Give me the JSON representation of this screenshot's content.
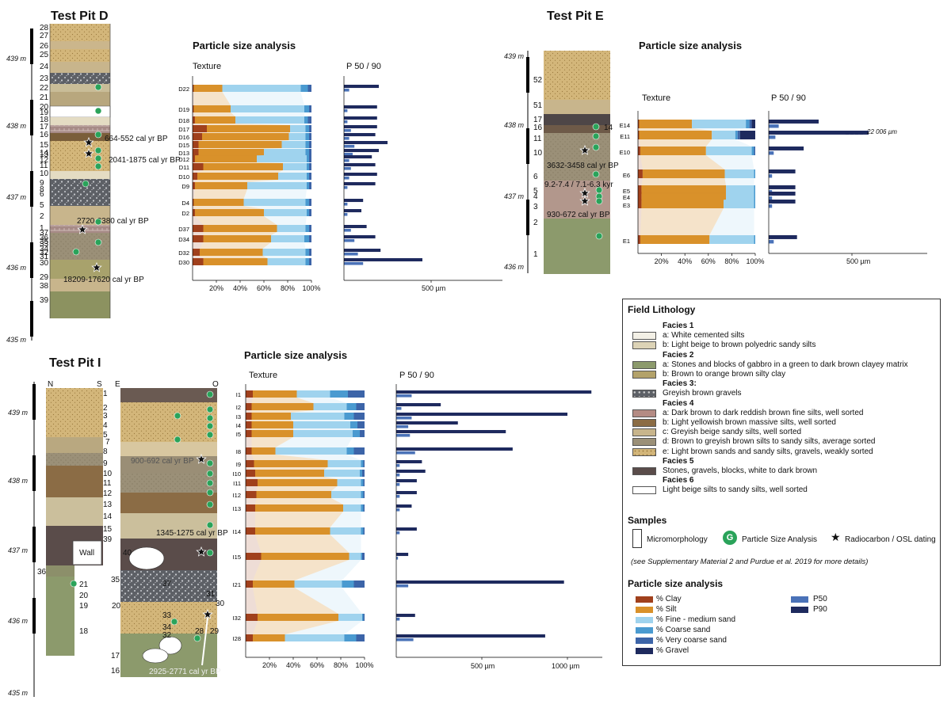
{
  "pits": {
    "D": {
      "title": "Test Pit D",
      "elev": [
        "439 m",
        "438 m",
        "437 m",
        "436 m",
        "435 m"
      ],
      "layers": [
        "28",
        "27",
        "26",
        "25",
        "24",
        "23",
        "22",
        "21",
        "20",
        "19",
        "18",
        "17",
        "16",
        "15",
        "14",
        "13",
        "12",
        "11",
        "10",
        "9",
        "8",
        "6",
        "5",
        "2",
        "1",
        "37",
        "36",
        "35",
        "33",
        "34",
        "32",
        "31",
        "30",
        "29",
        "38",
        "39"
      ],
      "dates": [
        "664-552 cal yr BP",
        "2041-1875 cal yr BP",
        "2720-2380 cal yr BP",
        "18209-17620 cal yr BP"
      ]
    },
    "E": {
      "title": "Test Pit E",
      "elev": [
        "439 m",
        "438 m",
        "437 m",
        "436 m"
      ],
      "layers": [
        "52",
        "51",
        "17",
        "16",
        "14",
        "11",
        "10",
        "6",
        "5",
        "4",
        "3",
        "2",
        "1"
      ],
      "dates": [
        "3632-3458 cal yr BP",
        "9.2-7.4 / 7.1-6.3 kyr",
        "930-672 cal yr BP"
      ]
    },
    "I": {
      "title": "Test Pit I",
      "elev": [
        "439 m",
        "438 m",
        "437 m",
        "436 m",
        "435 m"
      ],
      "headers": [
        "N",
        "S",
        "E",
        "O"
      ],
      "layers_right": [
        "1",
        "2",
        "3",
        "4",
        "5",
        "7",
        "8",
        "9",
        "10",
        "11",
        "12",
        "13",
        "14",
        "15",
        "39",
        "40",
        "35",
        "37",
        "36",
        "31",
        "30",
        "33",
        "34",
        "32",
        "28",
        "29",
        "20",
        "17",
        "16"
      ],
      "layers_left": [
        "21",
        "20",
        "19",
        "18"
      ],
      "wall": "Wall",
      "dates": [
        "900-692 cal yr BP",
        "1345-1275 cal yr BP",
        "2925-2771 cal yr BP"
      ]
    }
  },
  "psa": {
    "title": "Particle size analysis",
    "texture": "Texture",
    "p5090": "P 50 / 90",
    "pct_ticks": [
      "20%",
      "40%",
      "60%",
      "80%",
      "100%"
    ],
    "um_500": "500 µm",
    "um_1000": "1000 µm",
    "e11_note": "22 006 µm"
  },
  "chart_data": [
    {
      "type": "bar",
      "title": "Test Pit D - Texture",
      "xlabel": "%",
      "stacked": true,
      "categories": [
        "D22",
        "D19",
        "D18",
        "D17",
        "D16",
        "D15",
        "D13",
        "D12",
        "D11",
        "D10",
        "D9",
        "D4",
        "D2",
        "D37",
        "D34",
        "D32",
        "D30"
      ],
      "series": [
        {
          "name": "% Clay",
          "values": [
            1,
            1,
            2,
            12,
            8,
            5,
            5,
            2,
            9,
            4,
            2,
            1,
            2,
            9,
            9,
            6,
            9
          ]
        },
        {
          "name": "% Silt",
          "values": [
            24,
            31,
            34,
            70,
            73,
            70,
            55,
            52,
            67,
            68,
            44,
            42,
            58,
            62,
            57,
            53,
            54
          ]
        },
        {
          "name": "% Fine - medium sand",
          "values": [
            66,
            62,
            58,
            13,
            14,
            20,
            35,
            42,
            20,
            24,
            50,
            52,
            36,
            24,
            28,
            36,
            32
          ]
        },
        {
          "name": "% Coarse sand",
          "values": [
            6,
            4,
            3,
            3,
            3,
            3,
            3,
            2,
            2,
            2,
            2,
            3,
            2,
            3,
            4,
            3,
            3
          ]
        },
        {
          "name": "% Very coarse sand",
          "values": [
            3,
            2,
            3,
            2,
            2,
            2,
            2,
            2,
            2,
            2,
            2,
            2,
            2,
            2,
            2,
            2,
            2
          ]
        }
      ]
    },
    {
      "type": "bar",
      "title": "Test Pit D - P 50 / 90",
      "xlabel": "µm",
      "xlim": [
        0,
        1000
      ],
      "categories": [
        "D22",
        "D19",
        "D18",
        "D17",
        "D16",
        "D15",
        "D13",
        "D12",
        "D11",
        "D10",
        "D9",
        "D4",
        "D2",
        "D37",
        "D34",
        "D32",
        "D30"
      ],
      "series": [
        {
          "name": "P50",
          "values": [
            30,
            20,
            20,
            40,
            30,
            60,
            50,
            30,
            40,
            30,
            20,
            20,
            20,
            40,
            60,
            80,
            110
          ]
        },
        {
          "name": "P90",
          "values": [
            200,
            190,
            190,
            190,
            180,
            250,
            200,
            160,
            180,
            190,
            180,
            110,
            100,
            130,
            180,
            210,
            450
          ]
        }
      ]
    },
    {
      "type": "bar",
      "title": "Test Pit E - Texture",
      "xlabel": "%",
      "stacked": true,
      "categories": [
        "E14",
        "E11",
        "E10",
        "E6",
        "E5",
        "E4",
        "E3",
        "E1"
      ],
      "series": [
        {
          "name": "% Clay",
          "values": [
            1,
            1,
            2,
            4,
            3,
            3,
            3,
            2
          ]
        },
        {
          "name": "% Silt",
          "values": [
            45,
            62,
            56,
            70,
            72,
            72,
            70,
            59
          ]
        },
        {
          "name": "% Fine - medium sand",
          "values": [
            46,
            20,
            39,
            25,
            24,
            24,
            26,
            38
          ]
        },
        {
          "name": "% Coarse sand",
          "values": [
            3,
            2,
            2,
            1,
            1,
            1,
            1,
            1
          ]
        },
        {
          "name": "% Very coarse sand",
          "values": [
            2,
            2,
            1,
            0,
            0,
            0,
            0,
            0
          ]
        },
        {
          "name": "% Gravel",
          "values": [
            3,
            13,
            0,
            0,
            0,
            0,
            0,
            0
          ]
        }
      ]
    },
    {
      "type": "bar",
      "title": "Test Pit E - P 50 / 90",
      "xlabel": "µm",
      "xlim": [
        0,
        1000
      ],
      "categories": [
        "E14",
        "E11",
        "E10",
        "E6",
        "E5",
        "E4",
        "E3",
        "E1"
      ],
      "series": [
        {
          "name": "P50",
          "values": [
            60,
            40,
            30,
            20,
            20,
            20,
            20,
            30
          ]
        },
        {
          "name": "P90",
          "values": [
            300,
            600,
            210,
            160,
            160,
            160,
            160,
            170
          ]
        }
      ]
    },
    {
      "type": "bar",
      "title": "Test Pit I - Texture",
      "xlabel": "%",
      "stacked": true,
      "categories": [
        "I1",
        "I2",
        "I3",
        "I4",
        "I5",
        "I8",
        "I9",
        "I10",
        "I11",
        "I12",
        "I13",
        "I14",
        "I15",
        "I21",
        "I32",
        "I28"
      ],
      "series": [
        {
          "name": "% Clay",
          "values": [
            6,
            5,
            5,
            5,
            5,
            5,
            7,
            8,
            10,
            9,
            8,
            8,
            13,
            6,
            10,
            6
          ]
        },
        {
          "name": "% Silt",
          "values": [
            37,
            52,
            33,
            35,
            35,
            20,
            62,
            58,
            67,
            63,
            74,
            63,
            74,
            35,
            68,
            27
          ]
        },
        {
          "name": "% Fine - medium sand",
          "values": [
            28,
            28,
            45,
            48,
            50,
            60,
            28,
            30,
            20,
            25,
            15,
            26,
            10,
            40,
            20,
            50
          ]
        },
        {
          "name": "% Coarse sand",
          "values": [
            15,
            8,
            8,
            6,
            6,
            6,
            2,
            2,
            2,
            2,
            2,
            2,
            1,
            10,
            1,
            10
          ]
        },
        {
          "name": "% Very coarse sand",
          "values": [
            14,
            7,
            9,
            6,
            4,
            9,
            1,
            2,
            1,
            1,
            1,
            1,
            2,
            9,
            1,
            7
          ]
        }
      ]
    },
    {
      "type": "bar",
      "title": "Test Pit I - P 50 / 90",
      "xlabel": "µm",
      "xlim": [
        0,
        1200
      ],
      "categories": [
        "I1",
        "I2",
        "I3",
        "I4",
        "I5",
        "I8",
        "I9",
        "I10",
        "I11",
        "I12",
        "I13",
        "I14",
        "I15",
        "I21",
        "I32",
        "I28"
      ],
      "series": [
        {
          "name": "P50",
          "values": [
            90,
            30,
            90,
            70,
            80,
            110,
            20,
            20,
            20,
            20,
            20,
            20,
            10,
            70,
            20,
            100
          ]
        },
        {
          "name": "P90",
          "values": [
            1140,
            260,
            1000,
            360,
            640,
            680,
            150,
            170,
            120,
            120,
            90,
            120,
            70,
            980,
            110,
            870
          ]
        }
      ]
    }
  ],
  "legend": {
    "field_title": "Field Lithology",
    "facies": [
      {
        "head": "Facies 1",
        "items": [
          "a: White cemented silts",
          "b: Light beige to brown polyedric sandy silts"
        ]
      },
      {
        "head": "Facies 2",
        "items": [
          "a: Stones and blocks of gabbro in a green to dark brown clayey matrix",
          "b: Brown to orange brown silty clay"
        ]
      },
      {
        "head": "Facies 3:",
        "items": [
          "Greyish brown gravels"
        ]
      },
      {
        "head": "Facies 4",
        "items": [
          "a: Dark brown to dark reddish brown fine silts, well sorted",
          "b: Light yellowish brown massive silts, well sorted",
          "c: Greyish beige sandy silts, well sorted",
          "d: Brown to greyish brown silts to sandy silts, average sorted",
          "e: Light brown sands and sandy silts, gravels, weakly sorted"
        ]
      },
      {
        "head": "Facies 5",
        "items": [
          "Stones, gravels, blocks, white to dark brown"
        ]
      },
      {
        "head": "Facies 6",
        "items": [
          "Light beige silts to sandy silts, well sorted"
        ]
      }
    ],
    "samples_title": "Samples",
    "samples": [
      "Micromorphology",
      "Particle Size Analysis",
      "Radiocarbon / OSL dating"
    ],
    "note": "(see Supplementary Material 2 and Purdue et al. 2019 for more details)",
    "psa_title": "Particle size analysis",
    "psa_items": [
      "% Clay",
      "% Silt",
      "% Fine - medium sand",
      "% Coarse sand",
      "% Very coarse sand",
      "% Gravel"
    ],
    "p_items": [
      "P50",
      "P90"
    ],
    "colors": {
      "clay": "#a0401c",
      "silt": "#d9912a",
      "fine": "#9fd3ee",
      "coarse": "#4a9ad0",
      "vcoarse": "#3c64a8",
      "gravel": "#1e2a5e",
      "p50": "#4a72b8",
      "p90": "#1e2a5e"
    }
  }
}
